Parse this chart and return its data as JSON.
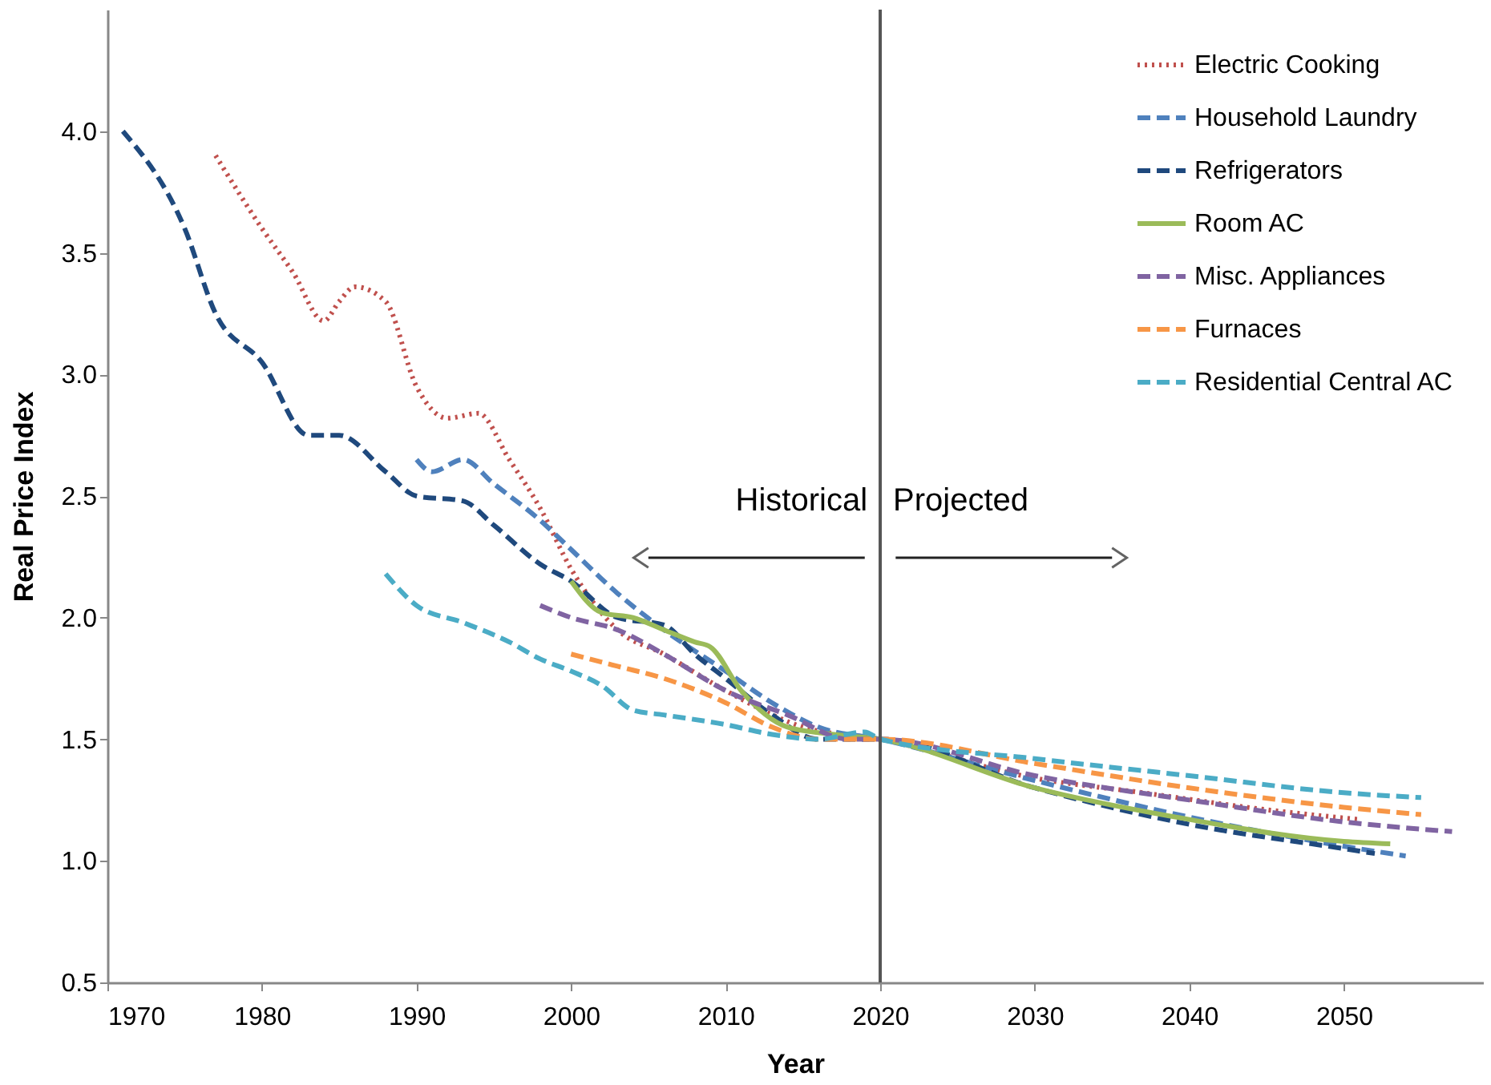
{
  "chart_data": {
    "type": "line",
    "xlabel": "Year",
    "ylabel": "Real Price Index",
    "xlim": [
      1970,
      2059
    ],
    "xticks": [
      1970,
      1980,
      1990,
      2000,
      2010,
      2020,
      2030,
      2040,
      2050
    ],
    "ylim": [
      0.5,
      4.5
    ],
    "yticks": [
      {
        "value": 0.5,
        "label": "0.5"
      },
      {
        "value": 1,
        "label": "1.0"
      },
      {
        "value": 1.5,
        "label": "1.5"
      },
      {
        "value": 2,
        "label": "2.0"
      },
      {
        "value": 2.5,
        "label": "2.5"
      },
      {
        "value": 3,
        "label": "3.0"
      },
      {
        "value": 3.5,
        "label": "3.5"
      },
      {
        "value": 4,
        "label": "4.0"
      }
    ],
    "grid": false,
    "legend": "top right",
    "marker": "none",
    "ref_lines": [
      {
        "axis": "x",
        "value": 2020,
        "label": null
      }
    ],
    "annotations": [
      "Historical",
      "Projected"
    ],
    "series": [
      {
        "name": "Electric Cooking",
        "color": "#c0504d",
        "line_style": "dotted",
        "x": [
          1977,
          1980,
          1982,
          1984,
          1985,
          1986,
          1988,
          1990,
          1992,
          1994,
          1996,
          1998,
          2000,
          2003,
          2006,
          2010,
          2015,
          2020,
          2030,
          2037,
          2045,
          2051
        ],
        "values": [
          3.9,
          3.6,
          3.42,
          3.22,
          3.3,
          3.36,
          3.3,
          2.95,
          2.82,
          2.84,
          2.65,
          2.45,
          2.2,
          1.95,
          1.85,
          1.7,
          1.55,
          1.5,
          1.34,
          1.28,
          1.21,
          1.17
        ]
      },
      {
        "name": "Household Laundry",
        "color": "#4f81bd",
        "line_style": "dashed",
        "x": [
          1990,
          1991,
          1993,
          1995,
          1998,
          2000,
          2003,
          2006,
          2010,
          2013,
          2016,
          2020,
          2030,
          2040,
          2050,
          2054
        ],
        "values": [
          2.65,
          2.6,
          2.65,
          2.55,
          2.4,
          2.28,
          2.1,
          1.95,
          1.78,
          1.65,
          1.55,
          1.5,
          1.33,
          1.18,
          1.06,
          1.02
        ]
      },
      {
        "name": "Refrigerators",
        "color": "#1f497d",
        "line_style": "dashed",
        "x": [
          1971,
          1975,
          1977,
          1980,
          1983,
          1985,
          1988,
          1990,
          1993,
          1995,
          1998,
          2000,
          2003,
          2006,
          2008,
          2010,
          2013,
          2016,
          2020,
          2030,
          2040,
          2050,
          2052
        ],
        "values": [
          4.0,
          3.6,
          3.25,
          3.05,
          2.75,
          2.75,
          2.6,
          2.5,
          2.48,
          2.38,
          2.22,
          2.15,
          2.0,
          1.97,
          1.85,
          1.75,
          1.6,
          1.5,
          1.5,
          1.3,
          1.15,
          1.05,
          1.03
        ]
      },
      {
        "name": "Room AC",
        "color": "#9bbb59",
        "line_style": "solid",
        "x": [
          2000,
          2002,
          2004,
          2006,
          2008,
          2009,
          2011,
          2014,
          2017,
          2020,
          2030,
          2040,
          2050,
          2053
        ],
        "values": [
          2.15,
          2.02,
          2.0,
          1.95,
          1.9,
          1.88,
          1.7,
          1.55,
          1.52,
          1.5,
          1.3,
          1.17,
          1.08,
          1.07
        ]
      },
      {
        "name": "Misc. Appliances",
        "color": "#8064a2",
        "line_style": "dashed",
        "x": [
          1998,
          2000,
          2003,
          2006,
          2010,
          2014,
          2018,
          2020,
          2030,
          2040,
          2050,
          2057
        ],
        "values": [
          2.05,
          2.0,
          1.95,
          1.85,
          1.7,
          1.6,
          1.5,
          1.5,
          1.35,
          1.25,
          1.16,
          1.12
        ]
      },
      {
        "name": "Furnaces",
        "color": "#f79646",
        "line_style": "dashed",
        "x": [
          2000,
          2003,
          2006,
          2010,
          2013,
          2016,
          2020,
          2030,
          2040,
          2050,
          2055
        ],
        "values": [
          1.85,
          1.8,
          1.75,
          1.65,
          1.55,
          1.5,
          1.5,
          1.4,
          1.3,
          1.22,
          1.19
        ]
      },
      {
        "name": "Residential Central AC",
        "color": "#4bacc6",
        "line_style": "dashed",
        "x": [
          1988,
          1990,
          1993,
          1996,
          1998,
          2000,
          2002,
          2004,
          2006,
          2010,
          2013,
          2016,
          2019,
          2020,
          2030,
          2040,
          2050,
          2055
        ],
        "values": [
          2.18,
          2.05,
          1.98,
          1.9,
          1.83,
          1.78,
          1.72,
          1.62,
          1.6,
          1.56,
          1.52,
          1.5,
          1.53,
          1.5,
          1.42,
          1.35,
          1.28,
          1.26
        ]
      }
    ]
  }
}
